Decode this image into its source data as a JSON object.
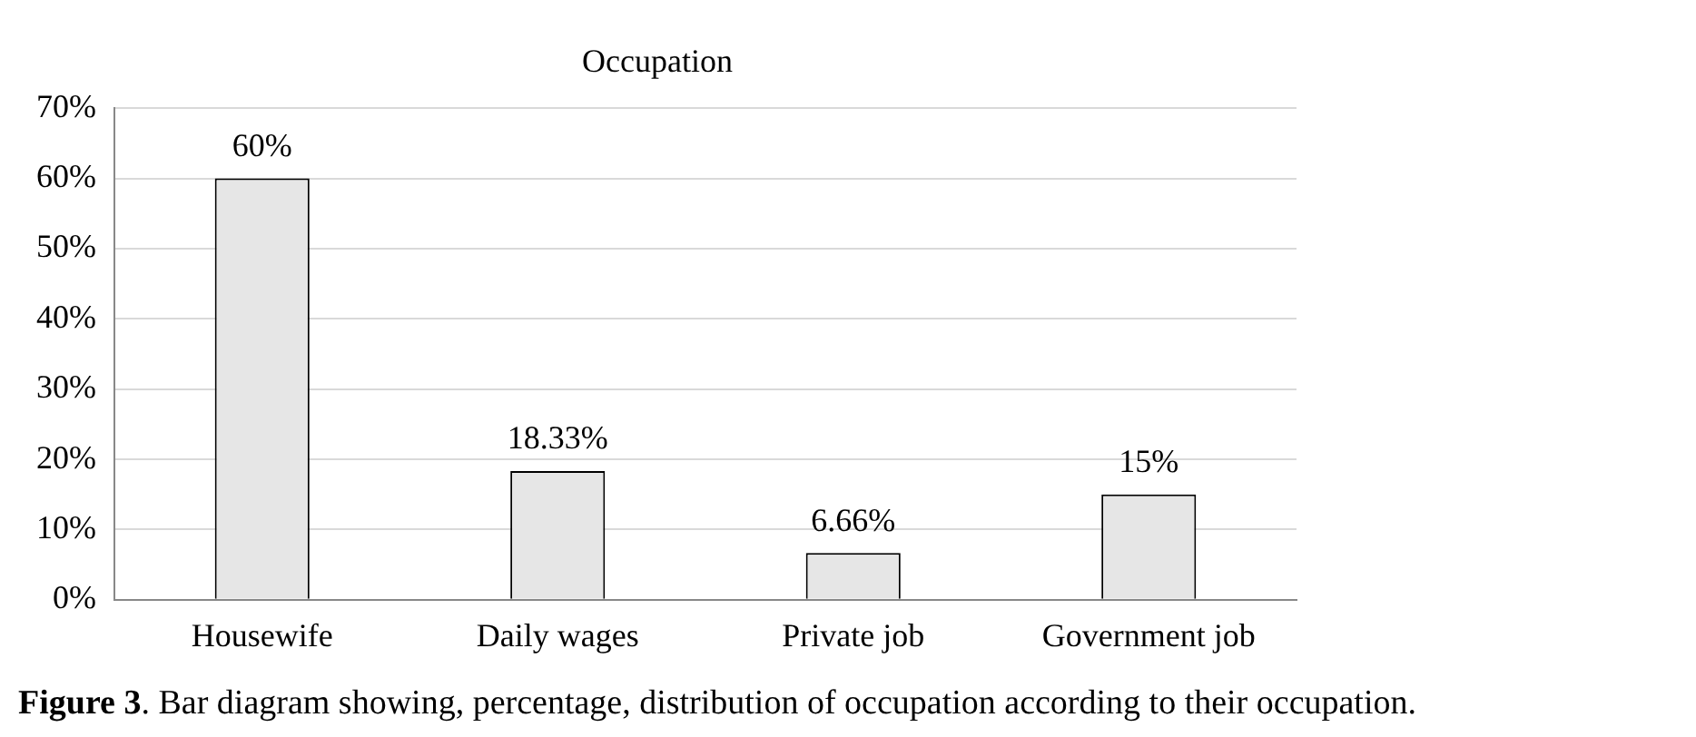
{
  "chart_data": {
    "type": "bar",
    "title": "Occupation",
    "categories": [
      "Housewife",
      "Daily wages",
      "Private job",
      "Government job"
    ],
    "values": [
      60,
      18.33,
      6.66,
      15
    ],
    "value_labels": [
      "60%",
      "18.33%",
      "6.66%",
      "15%"
    ],
    "color": "#e6e6e6",
    "ylim": [
      0,
      70
    ],
    "yticks": [
      {
        "value": 0,
        "label": "0%"
      },
      {
        "value": 10,
        "label": "10%"
      },
      {
        "value": 20,
        "label": "20%"
      },
      {
        "value": 30,
        "label": "30%"
      },
      {
        "value": 40,
        "label": "40%"
      },
      {
        "value": 50,
        "label": "50%"
      },
      {
        "value": 60,
        "label": "60%"
      },
      {
        "value": 70,
        "label": "70%"
      }
    ],
    "grid": "y",
    "annotations": [
      "Figure 3. Bar diagram showing, percentage, distribution of occupation according to their occupation."
    ]
  }
}
